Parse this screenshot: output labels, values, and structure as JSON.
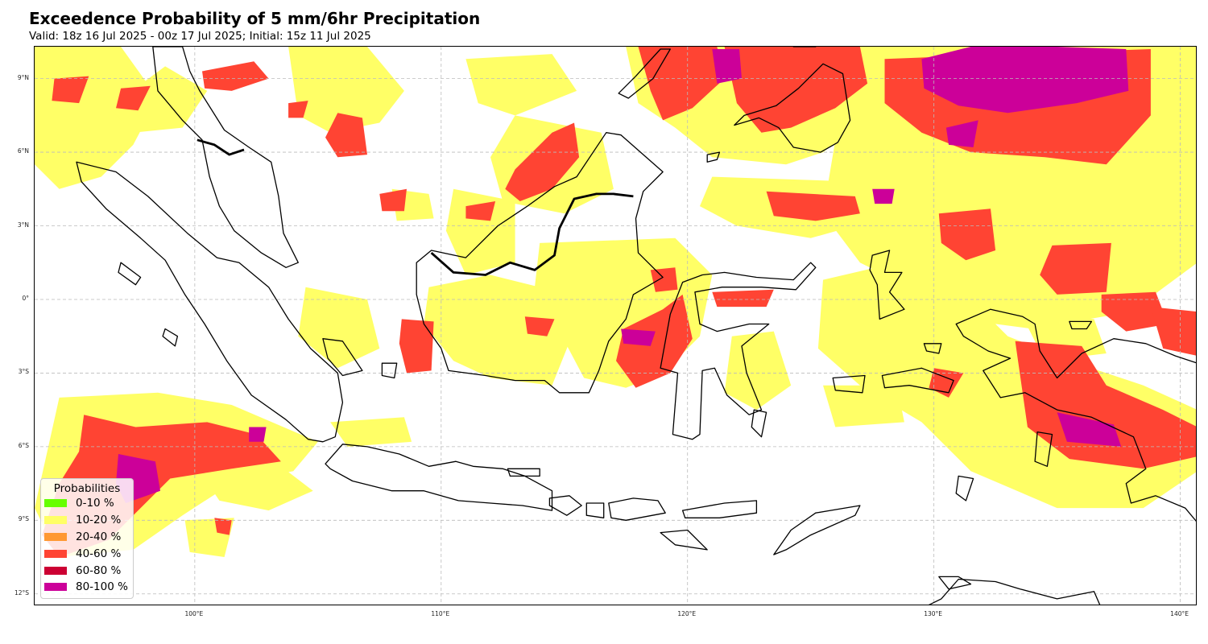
{
  "header": {
    "title": "Exceedence Probability of 5 mm/6hr Precipitation",
    "subtitle": "Valid: 18z 16 Jul 2025 - 00z 17 Jul 2025; Initial: 15z 11 Jul 2025"
  },
  "map": {
    "extent": {
      "lon_min": 93.5,
      "lon_max": 140.7,
      "lat_min": -12.5,
      "lat_max": 10.3
    },
    "lat_ticks": [
      {
        "value": 9,
        "label": "9°N"
      },
      {
        "value": 6,
        "label": "6°N"
      },
      {
        "value": 3,
        "label": "3°N"
      },
      {
        "value": 0,
        "label": "0°"
      },
      {
        "value": -3,
        "label": "3°S"
      },
      {
        "value": -6,
        "label": "6°S"
      },
      {
        "value": -9,
        "label": "9°S"
      },
      {
        "value": -12,
        "label": "12°S"
      }
    ],
    "lon_ticks": [
      {
        "value": 100,
        "label": "100°E"
      },
      {
        "value": 110,
        "label": "110°E"
      },
      {
        "value": 120,
        "label": "120°E"
      },
      {
        "value": 130,
        "label": "130°E"
      },
      {
        "value": 140,
        "label": "140°E"
      }
    ],
    "gridlines": true,
    "colors": {
      "cat_10_20": "#ffff66",
      "cat_40_60": "#ff4433",
      "cat_80_100": "#cc0099",
      "coast": "#000000",
      "grid": "#bbbbbb"
    }
  },
  "legend": {
    "title": "Probabilities",
    "items": [
      {
        "label": "0-10 %",
        "color": "#66ff00"
      },
      {
        "label": "10-20 %",
        "color": "#ffff66"
      },
      {
        "label": "20-40 %",
        "color": "#ff9933"
      },
      {
        "label": "40-60 %",
        "color": "#ff4433"
      },
      {
        "label": "60-80 %",
        "color": "#cc0033"
      },
      {
        "label": "80-100 %",
        "color": "#cc0099"
      }
    ]
  }
}
